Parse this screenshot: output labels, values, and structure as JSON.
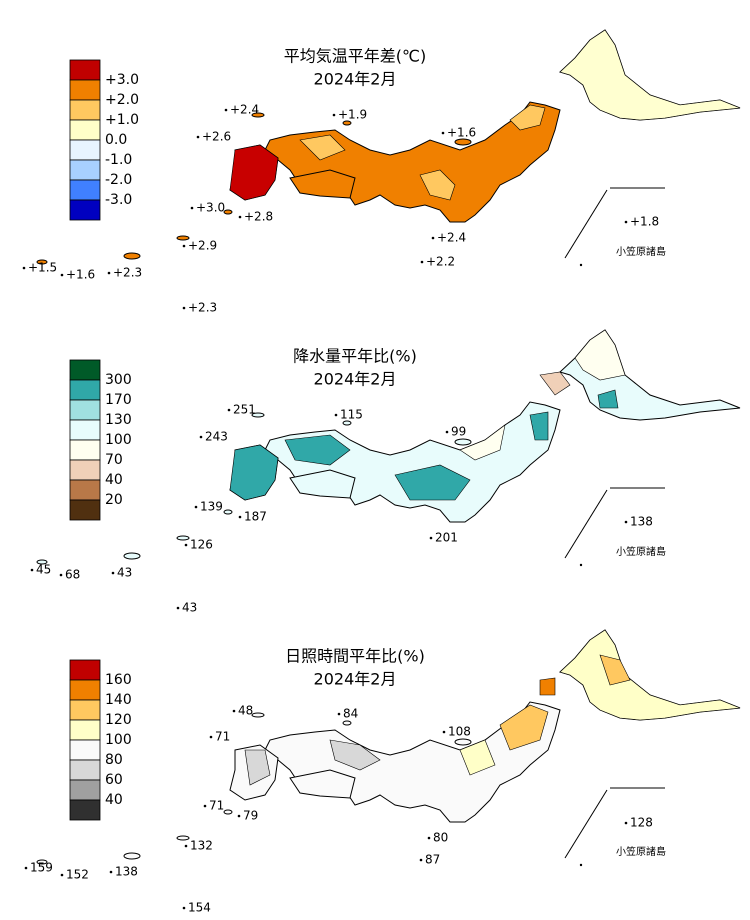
{
  "maps": [
    {
      "title": "平均気温平年差(℃)",
      "subtitle": "2024年2月",
      "legend": {
        "colors": [
          "#c00000",
          "#f08000",
          "#ffc860",
          "#ffffc8",
          "#e8f4ff",
          "#a8d0ff",
          "#4080ff",
          "#0000c0"
        ],
        "labels": [
          "+3.0",
          "+2.0",
          "+1.0",
          "0.0",
          "-1.0",
          "-2.0",
          "-3.0"
        ]
      },
      "stations": [
        "+2.4",
        "+1.9",
        "+2.6",
        "+1.6",
        "+3.0",
        "+2.8",
        "+1.8",
        "+2.4",
        "+2.9",
        "+2.2",
        "+1.5",
        "+1.6",
        "+2.3",
        "+2.3"
      ],
      "island_label": "小笠原諸島"
    },
    {
      "title": "降水量平年比(%)",
      "subtitle": "2024年2月",
      "legend": {
        "colors": [
          "#005a28",
          "#30a8a8",
          "#a0e0e0",
          "#e8fcfc",
          "#fffff0",
          "#f0d0b8",
          "#b87848",
          "#503010"
        ],
        "labels": [
          "300",
          "170",
          "130",
          "100",
          "70",
          "40",
          "20"
        ]
      },
      "stations": [
        "251",
        "115",
        "243",
        "99",
        "139",
        "187",
        "138",
        "201",
        "126",
        "45",
        "68",
        "43",
        "43"
      ],
      "island_label": "小笠原諸島"
    },
    {
      "title": "日照時間平年比(%)",
      "subtitle": "2024年2月",
      "legend": {
        "colors": [
          "#c00000",
          "#f08000",
          "#ffc860",
          "#ffffc8",
          "#fafafa",
          "#d8d8d8",
          "#a0a0a0",
          "#303030"
        ],
        "labels": [
          "160",
          "140",
          "120",
          "100",
          "80",
          "60",
          "40"
        ]
      },
      "stations": [
        "48",
        "84",
        "71",
        "108",
        "71",
        "79",
        "128",
        "80",
        "132",
        "87",
        "159",
        "152",
        "138",
        "154"
      ],
      "island_label": "小笠原諸島"
    }
  ]
}
